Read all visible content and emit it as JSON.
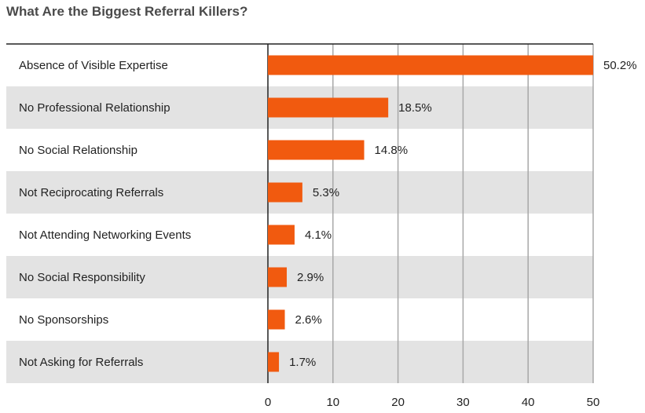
{
  "chart_data": {
    "type": "bar",
    "orientation": "horizontal",
    "title": "What Are the Biggest Referral Killers?",
    "categories": [
      "Absence of Visible Expertise",
      "No Professional Relationship",
      "No Social Relationship",
      "Not Reciprocating Referrals",
      "Not Attending Networking Events",
      "No Social Responsibility",
      "No Sponsorships",
      "Not Asking for Referrals"
    ],
    "values": [
      50.2,
      18.5,
      14.8,
      5.3,
      4.1,
      2.9,
      2.6,
      1.7
    ],
    "value_labels": [
      "50.2%",
      "18.5%",
      "14.8%",
      "5.3%",
      "4.1%",
      "2.9%",
      "2.6%",
      "1.7%"
    ],
    "xlim": [
      0,
      50
    ],
    "xticks": [
      0,
      10,
      20,
      30,
      40,
      50
    ],
    "xlabel": "",
    "ylabel": "",
    "grid": true,
    "legend": "none"
  },
  "colors": {
    "bar": "#f15a0f",
    "band": "#e3e3e3",
    "grid": "#a8a8a8",
    "axis": "#222222"
  }
}
